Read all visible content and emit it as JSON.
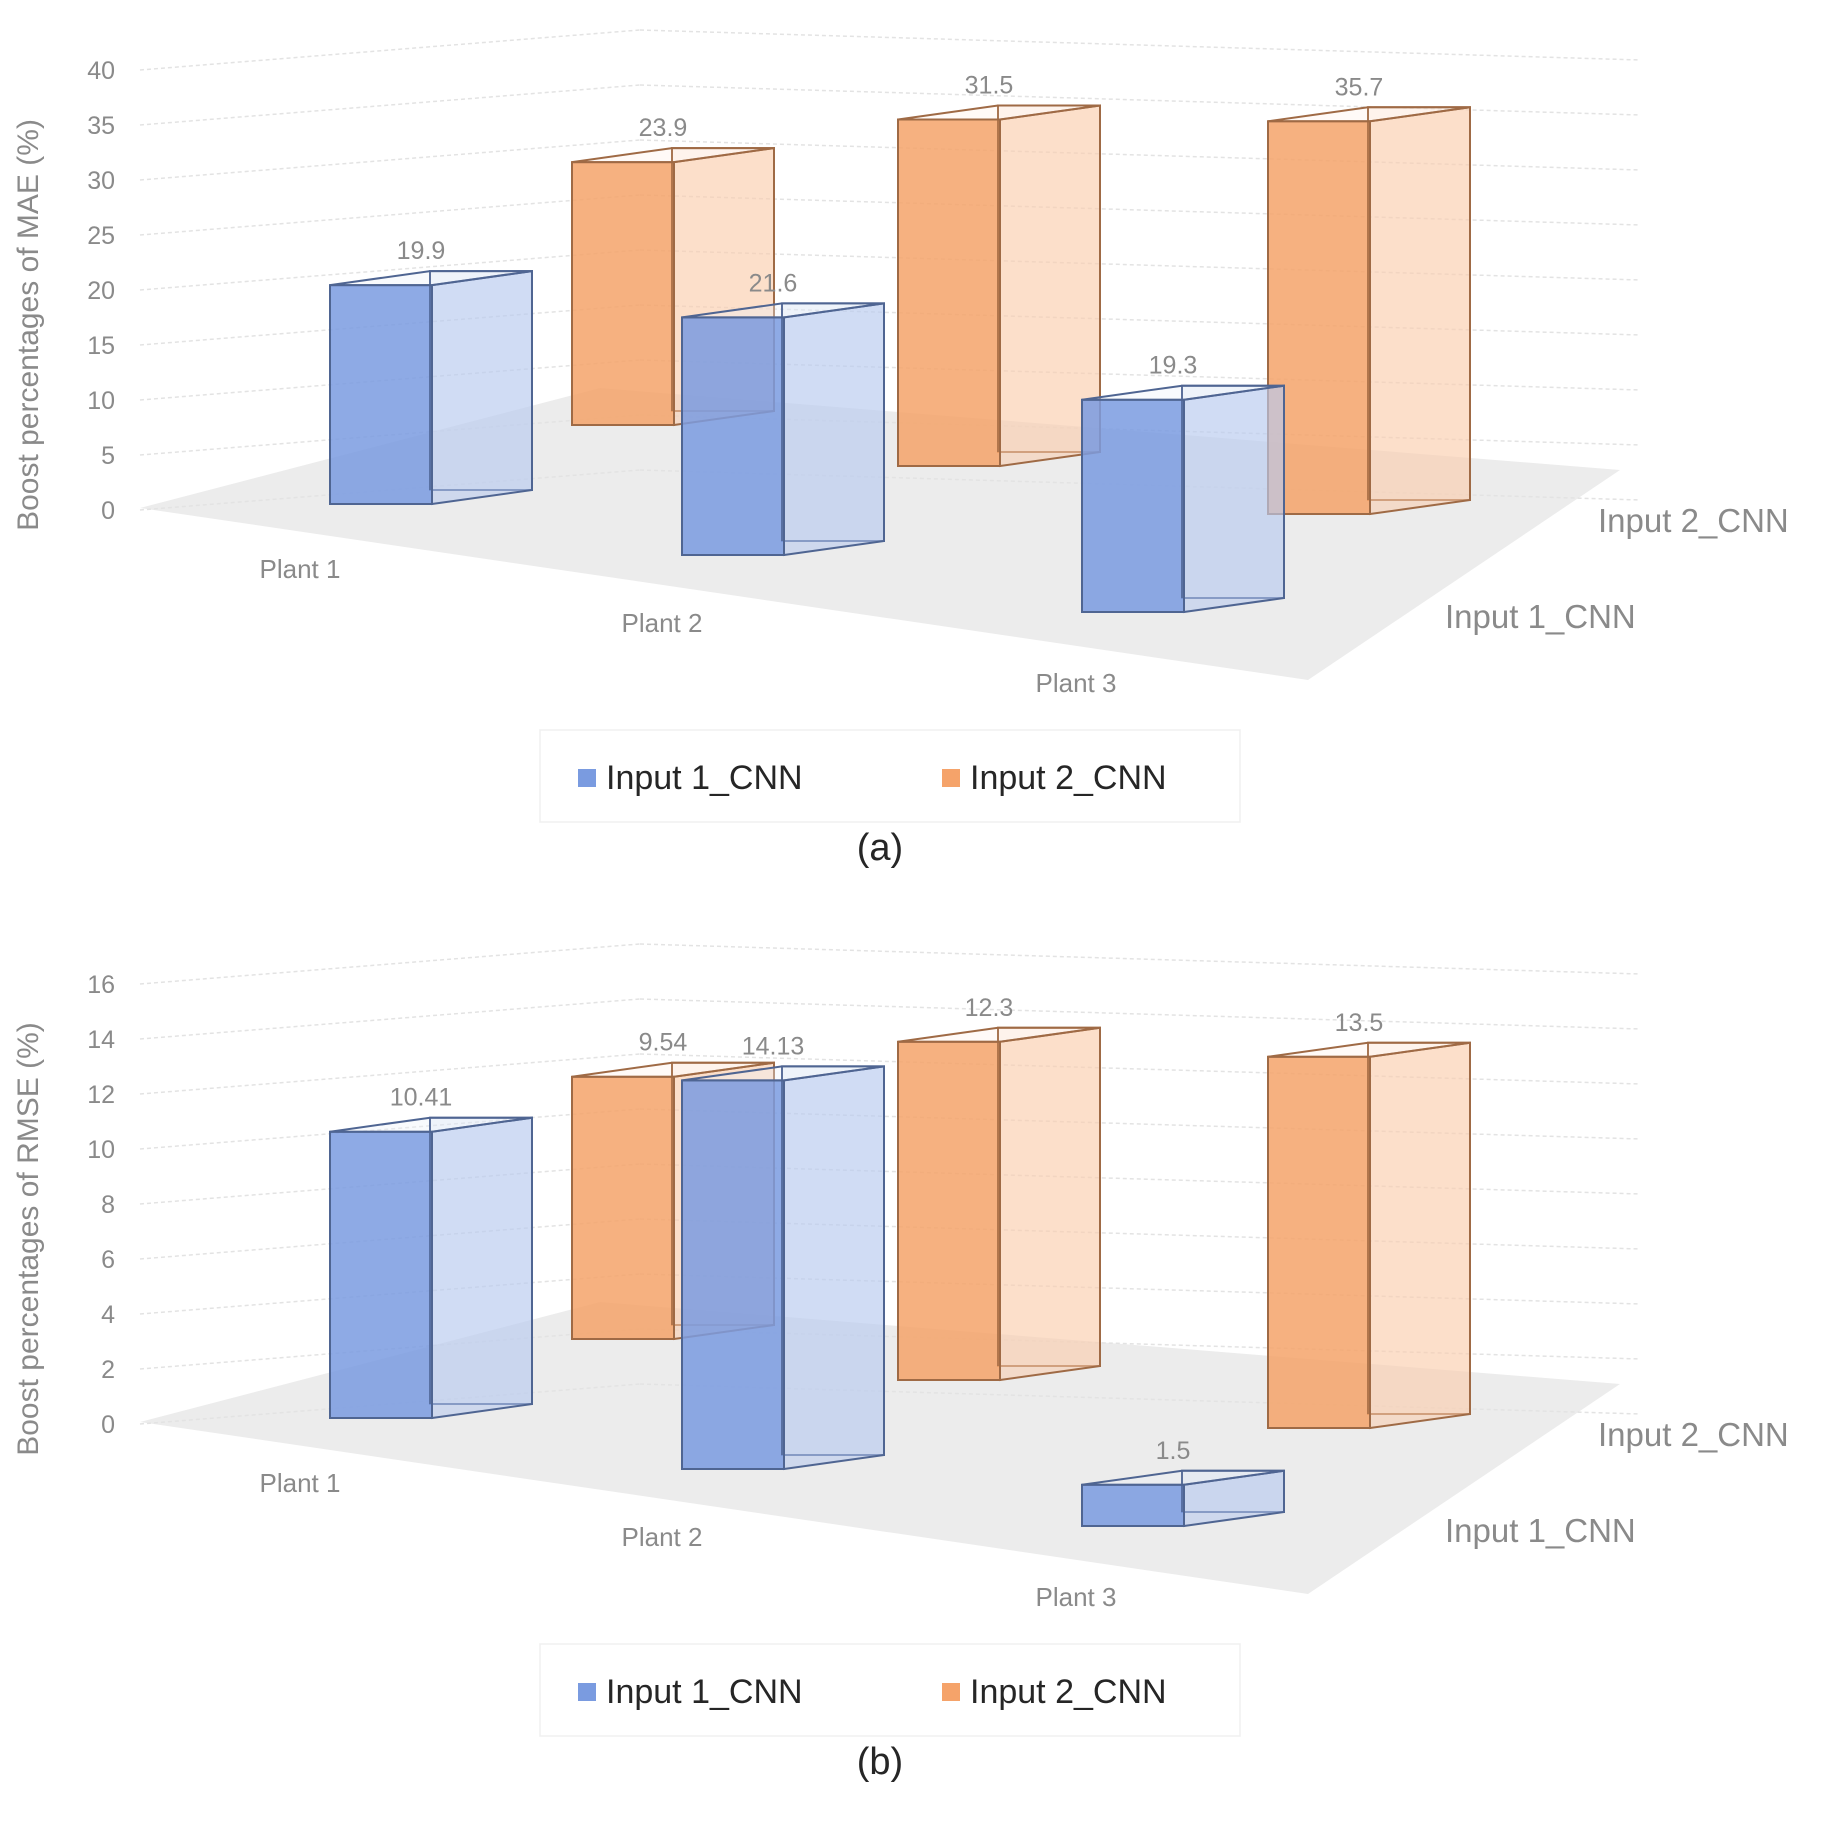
{
  "chart_data": [
    {
      "type": "bar",
      "subtype": "3d-clustered-depth",
      "panel_label": "(a)",
      "ylabel": "Boost percentages of MAE  (%)",
      "ylim": [
        0,
        40
      ],
      "yticks": [
        "0",
        "5",
        "10",
        "15",
        "20",
        "25",
        "30",
        "35",
        "40"
      ],
      "categories": [
        "Plant 1",
        "Plant 2",
        "Plant 3"
      ],
      "series": [
        {
          "name": "Input 1_CNN",
          "values": [
            19.9,
            21.6,
            19.3
          ],
          "labels": [
            "19.9",
            "21.6",
            "19.3"
          ],
          "color": "#7a9be0"
        },
        {
          "name": "Input 2_CNN",
          "values": [
            23.9,
            31.5,
            35.7
          ],
          "labels": [
            "23.9",
            "31.5",
            "35.7"
          ],
          "color": "#f5a36a"
        }
      ],
      "legend": "bottom",
      "grid": true
    },
    {
      "type": "bar",
      "subtype": "3d-clustered-depth",
      "panel_label": "(b)",
      "ylabel": "Boost percentages of RMSE (%)",
      "ylim": [
        0,
        16
      ],
      "yticks": [
        "0",
        "2",
        "4",
        "6",
        "8",
        "10",
        "12",
        "14",
        "16"
      ],
      "categories": [
        "Plant 1",
        "Plant 2",
        "Plant 3"
      ],
      "series": [
        {
          "name": "Input 1_CNN",
          "values": [
            10.41,
            14.13,
            1.5
          ],
          "labels": [
            "10.41",
            "14.13",
            "1.5"
          ],
          "color": "#7a9be0"
        },
        {
          "name": "Input 2_CNN",
          "values": [
            9.54,
            12.3,
            13.5
          ],
          "labels": [
            "9.54",
            "12.3",
            "13.5"
          ],
          "color": "#f5a36a"
        }
      ],
      "legend": "bottom",
      "grid": true
    }
  ]
}
